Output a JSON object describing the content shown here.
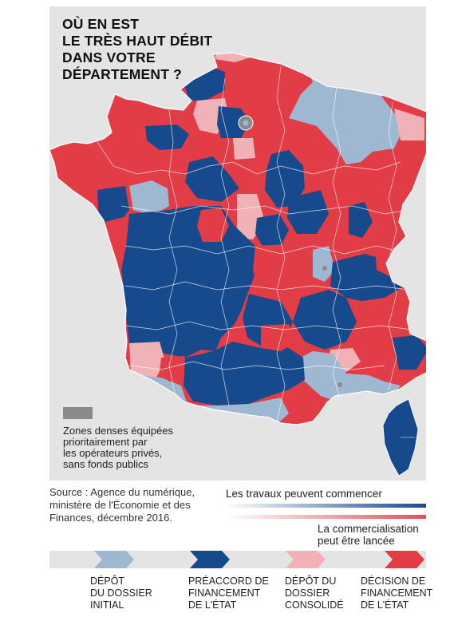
{
  "title": {
    "line1": "OÙ EN EST",
    "line2": "LE TRÈS HAUT DÉBIT",
    "line3": "DANS VOTRE",
    "line4": "DÉPARTEMENT ?"
  },
  "colors": {
    "background": "#e4e4e4",
    "dense_zones": "#8a8a8a",
    "depot_initial": "#9fb8d2",
    "preaccord": "#174a8c",
    "depot_consolide": "#f0b2b7",
    "decision": "#e23c46",
    "border": "#ffffff"
  },
  "legend": {
    "dense_zones": {
      "line1": "Zones denses équipées",
      "line2": "prioritairement par",
      "line3": "les opérateurs privés,",
      "line4": "sans fonds publics"
    },
    "works_label": "Les travaux peuvent commencer",
    "sales_label": {
      "line1": "La commercialisation",
      "line2": "peut être lancée"
    }
  },
  "source": {
    "line1": "Source : Agence du numérique,",
    "line2": "ministère de l'Économie et des",
    "line3": "Finances, décembre 2016."
  },
  "steps": [
    {
      "line1": "DÉPÔT",
      "line2": "DU DOSSIER",
      "line3": "INITIAL",
      "color_key": "depot_initial"
    },
    {
      "line1": "PRÉACCORD DE",
      "line2": "FINANCEMENT",
      "line3": "DE L'ÉTAT",
      "color_key": "preaccord"
    },
    {
      "line1": "DÉPÔT DU",
      "line2": "DOSSIER",
      "line3": "CONSOLIDÉ",
      "color_key": "depot_consolide"
    },
    {
      "line1": "DÉCISION DE",
      "line2": "FINANCEMENT",
      "line3": "DE L'ÉTAT",
      "color_key": "decision"
    }
  ]
}
